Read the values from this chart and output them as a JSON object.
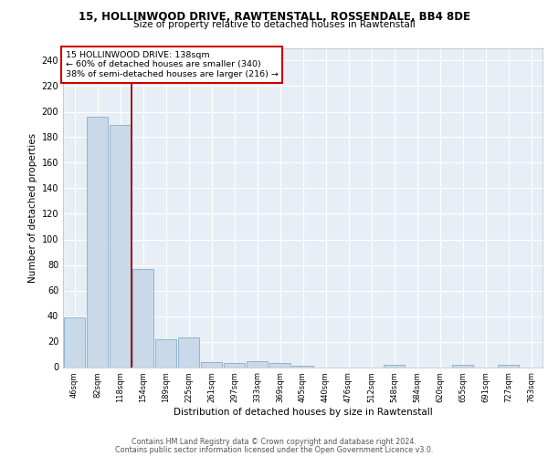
{
  "title": "15, HOLLINWOOD DRIVE, RAWTENSTALL, ROSSENDALE, BB4 8DE",
  "subtitle": "Size of property relative to detached houses in Rawtenstall",
  "xlabel": "Distribution of detached houses by size in Rawtenstall",
  "ylabel": "Number of detached properties",
  "bar_color": "#c9d9ea",
  "bar_edge_color": "#90b4cc",
  "background_color": "#e8eef6",
  "grid_color": "#ffffff",
  "categories": [
    "46sqm",
    "82sqm",
    "118sqm",
    "154sqm",
    "189sqm",
    "225sqm",
    "261sqm",
    "297sqm",
    "333sqm",
    "369sqm",
    "405sqm",
    "440sqm",
    "476sqm",
    "512sqm",
    "548sqm",
    "584sqm",
    "620sqm",
    "655sqm",
    "691sqm",
    "727sqm",
    "763sqm"
  ],
  "values": [
    39,
    196,
    190,
    77,
    22,
    23,
    4,
    3,
    5,
    3,
    1,
    0,
    0,
    0,
    2,
    0,
    0,
    2,
    0,
    2,
    0
  ],
  "red_line_x": 2.48,
  "annotation_line1": "15 HOLLINWOOD DRIVE: 138sqm",
  "annotation_line2": "← 60% of detached houses are smaller (340)",
  "annotation_line3": "38% of semi-detached houses are larger (216) →",
  "annotation_box_color": "#ffffff",
  "annotation_border_color": "#cc0000",
  "ylim": [
    0,
    250
  ],
  "yticks": [
    0,
    20,
    40,
    60,
    80,
    100,
    120,
    140,
    160,
    180,
    200,
    220,
    240
  ],
  "footer_line1": "Contains HM Land Registry data © Crown copyright and database right 2024.",
  "footer_line2": "Contains public sector information licensed under the Open Government Licence v3.0."
}
